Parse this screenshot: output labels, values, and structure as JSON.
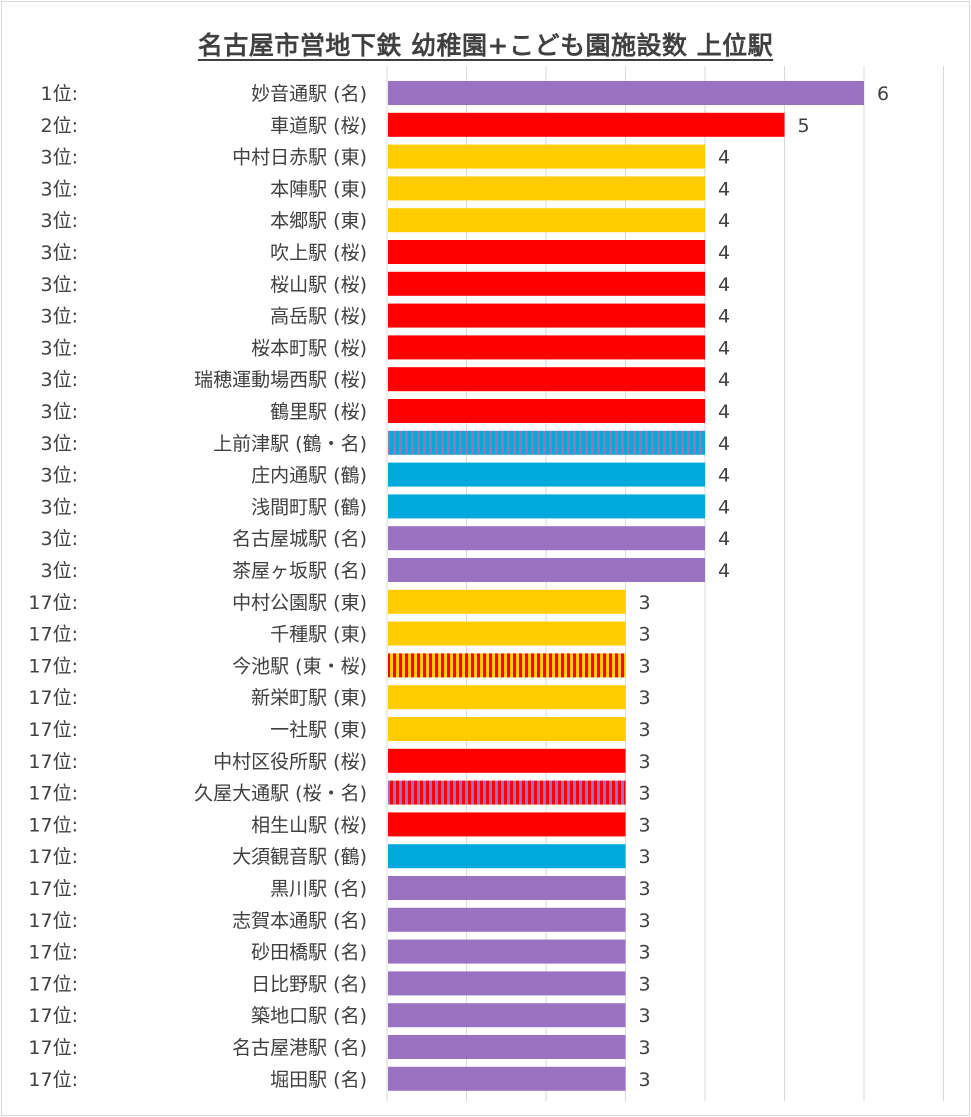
{
  "chart_data": {
    "type": "bar",
    "orientation": "horizontal",
    "title": "名古屋市営地下鉄 幼稚園+こども園施設数 上位駅",
    "xlabel": "",
    "ylabel": "",
    "xlim": [
      0,
      7
    ],
    "grid": true,
    "legend": "none",
    "line_colors": {
      "東": "#FFCC00",
      "桜": "#FF0000",
      "鶴": "#00A9DC",
      "名": "#9B72C2"
    },
    "rows": [
      {
        "rank": "1位:",
        "station": "妙音通駅 (名)",
        "value": 6,
        "lines": [
          "名"
        ]
      },
      {
        "rank": "2位:",
        "station": "車道駅 (桜)",
        "value": 5,
        "lines": [
          "桜"
        ]
      },
      {
        "rank": "3位:",
        "station": "中村日赤駅 (東)",
        "value": 4,
        "lines": [
          "東"
        ]
      },
      {
        "rank": "3位:",
        "station": "本陣駅 (東)",
        "value": 4,
        "lines": [
          "東"
        ]
      },
      {
        "rank": "3位:",
        "station": "本郷駅 (東)",
        "value": 4,
        "lines": [
          "東"
        ]
      },
      {
        "rank": "3位:",
        "station": "吹上駅 (桜)",
        "value": 4,
        "lines": [
          "桜"
        ]
      },
      {
        "rank": "3位:",
        "station": "桜山駅 (桜)",
        "value": 4,
        "lines": [
          "桜"
        ]
      },
      {
        "rank": "3位:",
        "station": "高岳駅 (桜)",
        "value": 4,
        "lines": [
          "桜"
        ]
      },
      {
        "rank": "3位:",
        "station": "桜本町駅 (桜)",
        "value": 4,
        "lines": [
          "桜"
        ]
      },
      {
        "rank": "3位:",
        "station": "瑞穂運動場西駅 (桜)",
        "value": 4,
        "lines": [
          "桜"
        ]
      },
      {
        "rank": "3位:",
        "station": "鶴里駅 (桜)",
        "value": 4,
        "lines": [
          "桜"
        ]
      },
      {
        "rank": "3位:",
        "station": "上前津駅 (鶴・名)",
        "value": 4,
        "lines": [
          "鶴",
          "名"
        ]
      },
      {
        "rank": "3位:",
        "station": "庄内通駅 (鶴)",
        "value": 4,
        "lines": [
          "鶴"
        ]
      },
      {
        "rank": "3位:",
        "station": "浅間町駅 (鶴)",
        "value": 4,
        "lines": [
          "鶴"
        ]
      },
      {
        "rank": "3位:",
        "station": "名古屋城駅 (名)",
        "value": 4,
        "lines": [
          "名"
        ]
      },
      {
        "rank": "3位:",
        "station": "茶屋ヶ坂駅 (名)",
        "value": 4,
        "lines": [
          "名"
        ]
      },
      {
        "rank": "17位:",
        "station": "中村公園駅 (東)",
        "value": 3,
        "lines": [
          "東"
        ]
      },
      {
        "rank": "17位:",
        "station": "千種駅 (東)",
        "value": 3,
        "lines": [
          "東"
        ]
      },
      {
        "rank": "17位:",
        "station": "今池駅 (東・桜)",
        "value": 3,
        "lines": [
          "東",
          "桜"
        ]
      },
      {
        "rank": "17位:",
        "station": "新栄町駅 (東)",
        "value": 3,
        "lines": [
          "東"
        ]
      },
      {
        "rank": "17位:",
        "station": "一社駅 (東)",
        "value": 3,
        "lines": [
          "東"
        ]
      },
      {
        "rank": "17位:",
        "station": "中村区役所駅 (桜)",
        "value": 3,
        "lines": [
          "桜"
        ]
      },
      {
        "rank": "17位:",
        "station": "久屋大通駅 (桜・名)",
        "value": 3,
        "lines": [
          "桜",
          "名"
        ]
      },
      {
        "rank": "17位:",
        "station": "相生山駅 (桜)",
        "value": 3,
        "lines": [
          "桜"
        ]
      },
      {
        "rank": "17位:",
        "station": "大須観音駅 (鶴)",
        "value": 3,
        "lines": [
          "鶴"
        ]
      },
      {
        "rank": "17位:",
        "station": "黒川駅 (名)",
        "value": 3,
        "lines": [
          "名"
        ]
      },
      {
        "rank": "17位:",
        "station": "志賀本通駅 (名)",
        "value": 3,
        "lines": [
          "名"
        ]
      },
      {
        "rank": "17位:",
        "station": "砂田橋駅 (名)",
        "value": 3,
        "lines": [
          "名"
        ]
      },
      {
        "rank": "17位:",
        "station": "日比野駅 (名)",
        "value": 3,
        "lines": [
          "名"
        ]
      },
      {
        "rank": "17位:",
        "station": "築地口駅 (名)",
        "value": 3,
        "lines": [
          "名"
        ]
      },
      {
        "rank": "17位:",
        "station": "名古屋港駅 (名)",
        "value": 3,
        "lines": [
          "名"
        ]
      },
      {
        "rank": "17位:",
        "station": "堀田駅 (名)",
        "value": 3,
        "lines": [
          "名"
        ]
      }
    ]
  }
}
